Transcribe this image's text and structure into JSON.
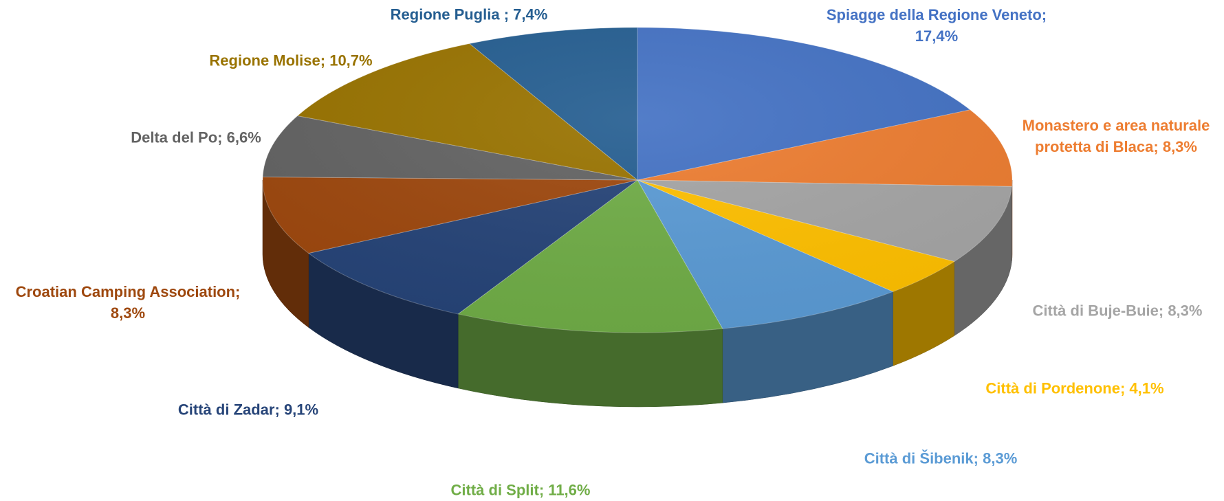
{
  "chart_data": {
    "type": "pie3d",
    "categories": [
      "Spiagge della Regione Veneto;",
      "Monastero e area naturale protetta di Blaca;",
      "Città di Buje-Buie;",
      "Città di  Pordenone;",
      "Città di Šibenik;",
      "Città di Split;",
      "Città di Zadar;",
      "Croatian Camping Association;",
      "Delta del Po;",
      "Regione Molise;",
      "Regione Puglia ;"
    ],
    "values": [
      17.4,
      8.3,
      8.3,
      4.1,
      8.3,
      11.6,
      9.1,
      8.3,
      6.6,
      10.7,
      7.4
    ],
    "value_labels": [
      "17,4%",
      "8,3%",
      "8,3%",
      "4,1%",
      "8,3%",
      "11,6%",
      "9,1%",
      "8,3%",
      "6,6%",
      "10,7%",
      "7,4%"
    ],
    "colors": [
      "#4472c4",
      "#ed7d31",
      "#a5a5a5",
      "#ffc000",
      "#5b9bd5",
      "#70ad47",
      "#264478",
      "#9e480e",
      "#636363",
      "#997300",
      "#255e91"
    ]
  }
}
